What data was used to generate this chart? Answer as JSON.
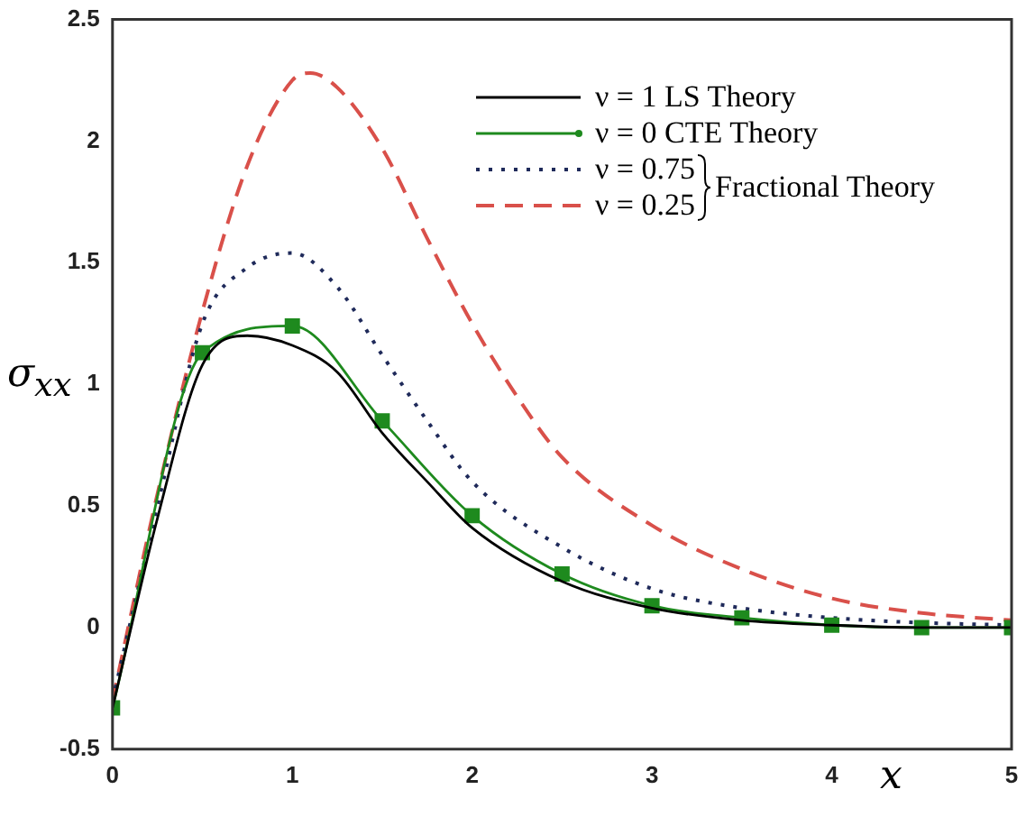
{
  "chart_data": {
    "type": "line",
    "xlabel": "x",
    "ylabel": "σ$_{xx}$",
    "xlim": [
      0,
      5
    ],
    "xticks": [
      0,
      1,
      2,
      3,
      4,
      5
    ],
    "ylim": [
      -0.5,
      2.5
    ],
    "yticks": [
      -0.5,
      0,
      0.5,
      1,
      1.5,
      2,
      2.5
    ],
    "grid": false,
    "legend": "top right",
    "annotations": [
      "Fractional Theory"
    ],
    "series": [
      {
        "name": "ν = 1  LS Theory",
        "color": "#000000",
        "line_style": "solid",
        "marker": "none",
        "x": [
          0,
          0.25,
          0.5,
          0.75,
          1,
          1.25,
          1.5,
          1.75,
          2,
          2.5,
          3,
          3.5,
          4,
          4.5,
          5
        ],
        "values": [
          -0.33,
          0.45,
          1.08,
          1.2,
          1.16,
          1.05,
          0.8,
          0.6,
          0.41,
          0.19,
          0.08,
          0.03,
          0.01,
          0,
          0
        ]
      },
      {
        "name": "ν = 0  CTE Theory",
        "color": "#1e8a1e",
        "line_style": "solid",
        "marker": "square",
        "x": [
          0,
          0.5,
          1,
          1.5,
          2,
          2.5,
          3,
          3.5,
          4,
          4.5,
          5
        ],
        "values": [
          -0.33,
          1.13,
          1.24,
          0.85,
          0.46,
          0.22,
          0.09,
          0.04,
          0.01,
          0,
          0
        ]
      },
      {
        "name": "ν = 0.75",
        "color": "#1f2a5a",
        "line_style": "dotted",
        "marker": "none",
        "x": [
          0,
          0.25,
          0.5,
          0.75,
          1,
          1.25,
          1.5,
          1.75,
          2,
          2.5,
          3,
          3.5,
          4,
          4.5,
          5
        ],
        "values": [
          -0.3,
          0.5,
          1.25,
          1.48,
          1.54,
          1.4,
          1.12,
          0.85,
          0.6,
          0.33,
          0.16,
          0.08,
          0.04,
          0.02,
          0.01
        ]
      },
      {
        "name": "ν = 0.25",
        "color": "#d9504a",
        "line_style": "dashed",
        "marker": "none",
        "x": [
          0,
          0.25,
          0.5,
          0.75,
          1,
          1.1,
          1.25,
          1.5,
          1.75,
          2,
          2.25,
          2.5,
          3,
          3.5,
          4,
          4.5,
          5
        ],
        "values": [
          -0.3,
          0.55,
          1.3,
          1.9,
          2.25,
          2.28,
          2.22,
          1.97,
          1.6,
          1.25,
          0.95,
          0.7,
          0.42,
          0.24,
          0.12,
          0.06,
          0.03
        ]
      }
    ]
  }
}
